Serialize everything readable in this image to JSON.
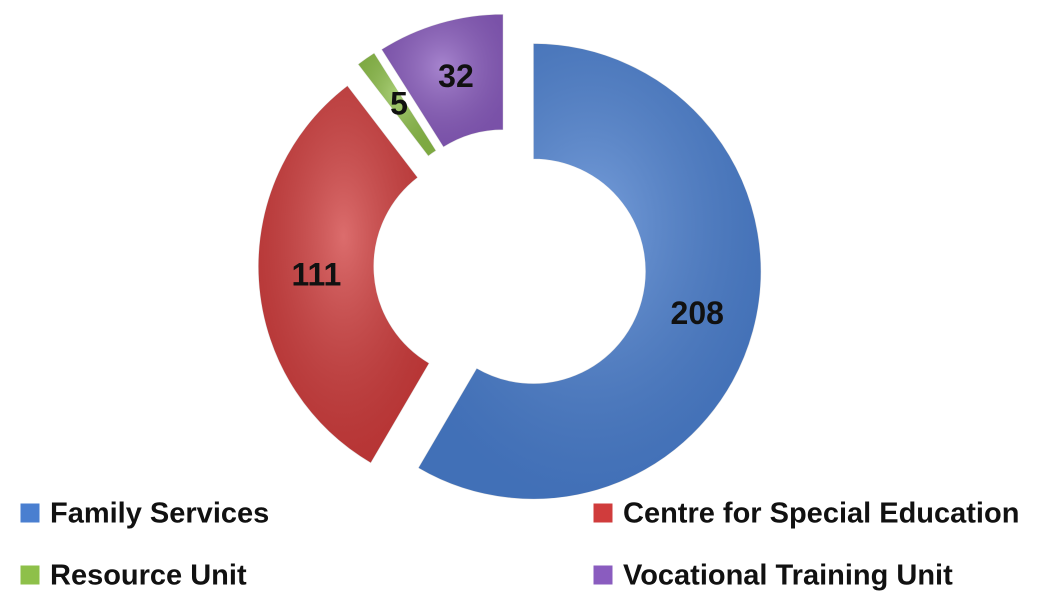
{
  "chart_data": {
    "type": "donut",
    "categories": [
      "Family Services",
      "Centre for Special Education",
      "Resource Unit",
      "Vocational Training Unit"
    ],
    "values": [
      208,
      111,
      5,
      32
    ],
    "colors": [
      "#4a7fd0",
      "#d03c3c",
      "#8ec04a",
      "#8a5cbf"
    ],
    "legend": "bottom"
  }
}
